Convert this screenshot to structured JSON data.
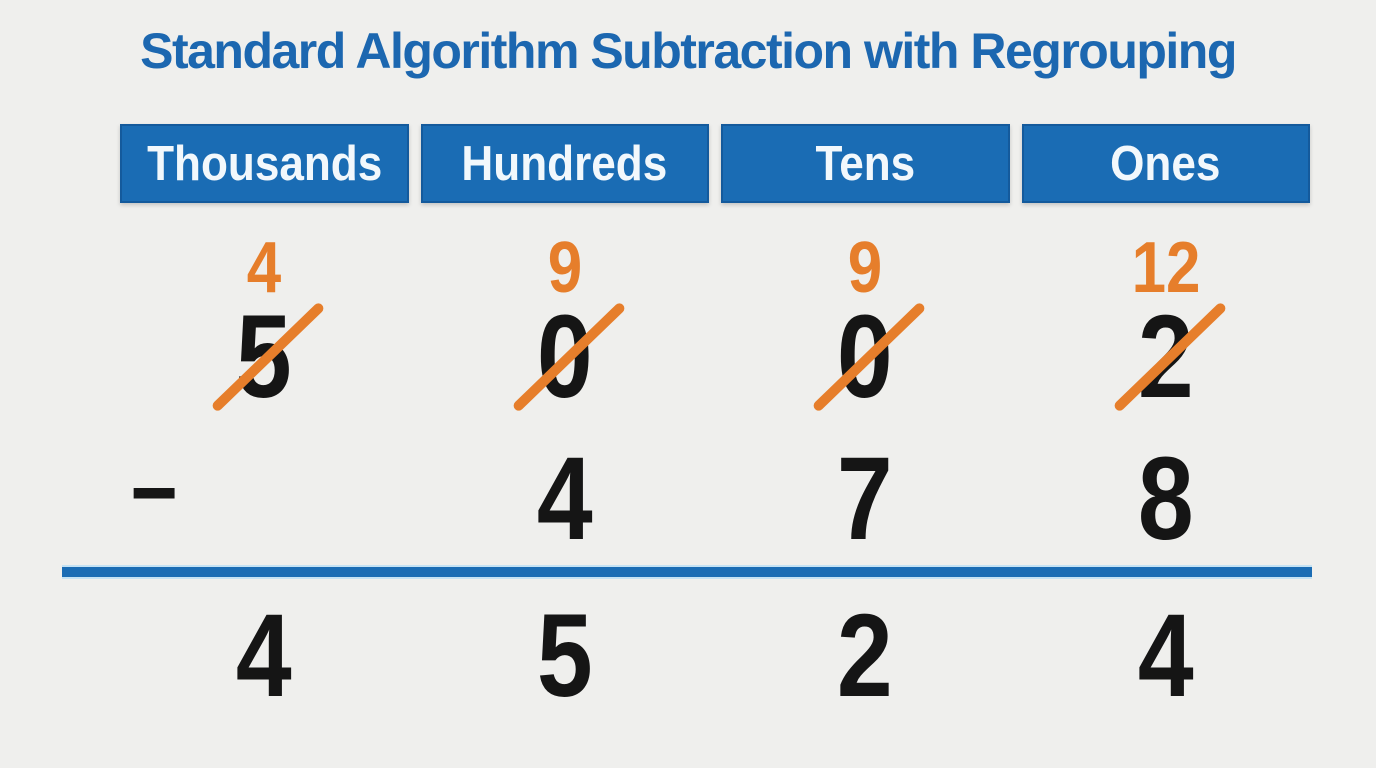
{
  "title": "Standard Algorithm Subtraction with Regrouping",
  "operator": "−",
  "columns": [
    {
      "id": "thousands",
      "label": "Thousands",
      "regroup": "4",
      "top_digit": "5",
      "crossed_out": true,
      "bottom_digit": "",
      "result_digit": "4"
    },
    {
      "id": "hundreds",
      "label": "Hundreds",
      "regroup": "9",
      "top_digit": "0",
      "crossed_out": true,
      "bottom_digit": "4",
      "result_digit": "5"
    },
    {
      "id": "tens",
      "label": "Tens",
      "regroup": "9",
      "top_digit": "0",
      "crossed_out": true,
      "bottom_digit": "7",
      "result_digit": "2"
    },
    {
      "id": "ones",
      "label": "Ones",
      "regroup": "12",
      "top_digit": "2",
      "crossed_out": true,
      "bottom_digit": "8",
      "result_digit": "4"
    }
  ],
  "colors": {
    "background": "#efefed",
    "header-blue": "#1a6cb4",
    "title-blue": "#1c67b0",
    "orange": "#e67e2b",
    "digit-black": "#151515"
  }
}
